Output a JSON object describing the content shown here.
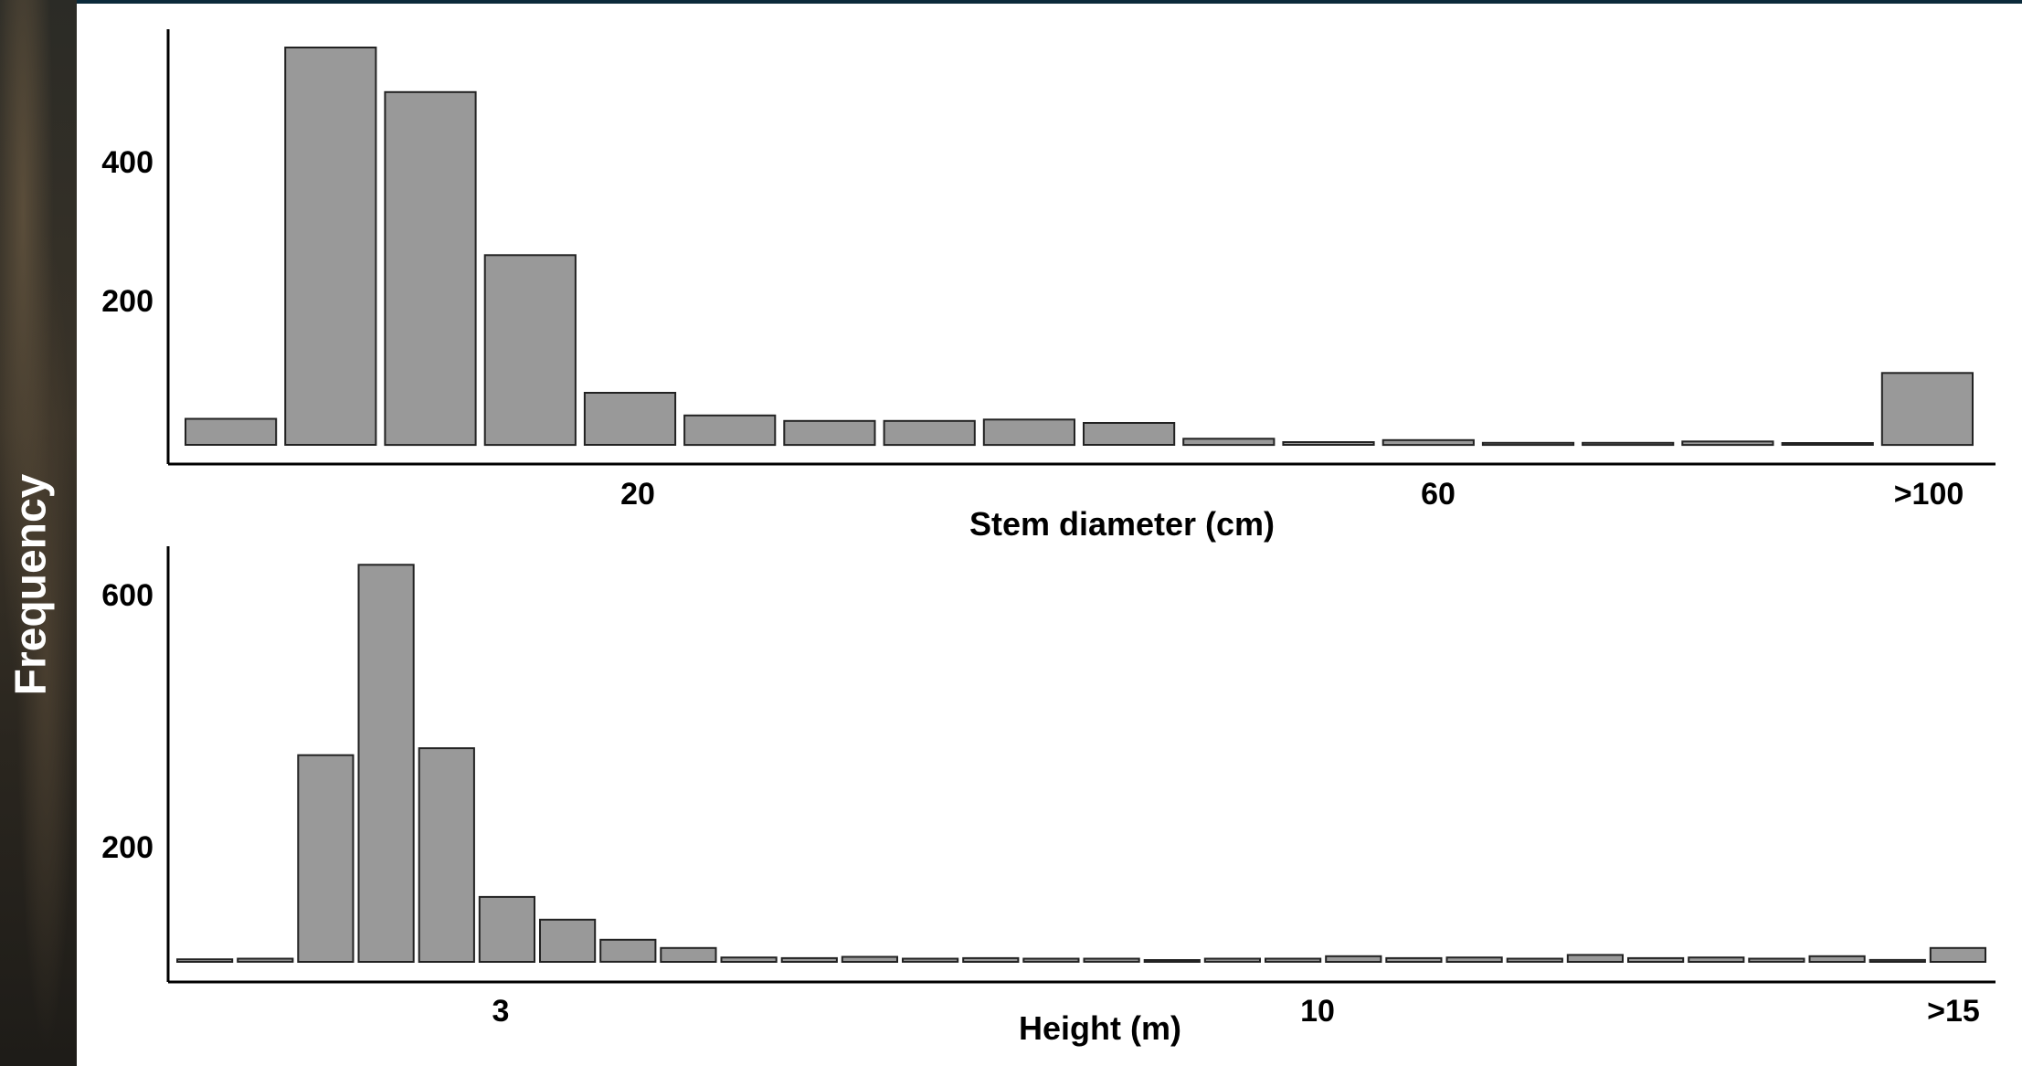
{
  "y_axis_title": "Frequency",
  "chart_data": [
    {
      "type": "bar",
      "xlabel": "Stem diameter (cm)",
      "ylabel": "Frequency",
      "x_tick_labels": [
        "20",
        "60",
        ">100"
      ],
      "y_ticks": [
        "200",
        "400"
      ],
      "ylim": [
        0,
        600
      ],
      "values": [
        38,
        580,
        515,
        277,
        76,
        43,
        35,
        35,
        37,
        32,
        9,
        4,
        7,
        3,
        3,
        5,
        2,
        105
      ],
      "fill_color": "#999999",
      "grid": false
    },
    {
      "type": "bar",
      "xlabel": "Height (m)",
      "ylabel": "Frequency",
      "x_tick_labels": [
        "3",
        "10",
        ">15"
      ],
      "y_ticks": [
        "200",
        "600"
      ],
      "ylim": [
        0,
        700
      ],
      "values": [
        4,
        5,
        328,
        630,
        339,
        103,
        67,
        35,
        22,
        7,
        6,
        8,
        5,
        6,
        5,
        5,
        2,
        5,
        5,
        9,
        6,
        7,
        5,
        11,
        6,
        7,
        5,
        9,
        3,
        22
      ],
      "fill_color": "#999999",
      "grid": false
    }
  ]
}
